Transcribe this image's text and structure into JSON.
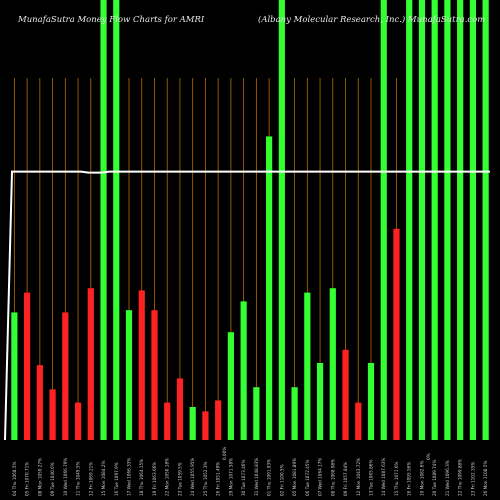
{
  "chart_data": {
    "type": "bar",
    "title_left": "MunafaSutra  Money Flow  Charts for AMRI",
    "title_right": "(Albany Molecular Research, Inc.) MunafaSutra.com",
    "background": "#000000",
    "colors": {
      "up": "#33ff33",
      "down": "#ff2222",
      "line": "#ffffff",
      "grid": "#b86a00"
    },
    "ylim": [
      0,
      100
    ],
    "grid_vertical": true,
    "line_series": {
      "name": "",
      "values": [
        61,
        61,
        61,
        61,
        61,
        61,
        61,
        61,
        61,
        61,
        61,
        61,
        61,
        61,
        61,
        61,
        61,
        61,
        61,
        61,
        61,
        61,
        61,
        61,
        61,
        61,
        61,
        61,
        61,
        61,
        61,
        61,
        61,
        61,
        61,
        61,
        61,
        61,
        61,
        61,
        61,
        61,
        61,
        61,
        61,
        61,
        61,
        61,
        61,
        61,
        61,
        61,
        61,
        61,
        61,
        61,
        61,
        61,
        61,
        61,
        61,
        61,
        61,
        61,
        61,
        61,
        61,
        61,
        61,
        61
      ]
    },
    "bars": [
      {
        "label": "04 Thu 1068.5% ",
        "value": 29,
        "dir": "up"
      },
      {
        "label": "05 Fri 1070.71% ",
        "value": 33.5,
        "dir": "down"
      },
      {
        "label": "08 Mon 1059.27% ",
        "value": 17,
        "dir": "down"
      },
      {
        "label": "09 Tue 1040.6% ",
        "value": 11.5,
        "dir": "down"
      },
      {
        "label": "10 Wed 1066.79% ",
        "value": 29,
        "dir": "down"
      },
      {
        "label": "11 Thu 1049.5% ",
        "value": 8.5,
        "dir": "down"
      },
      {
        "label": "12 Fri 1069.21% ",
        "value": 34.5,
        "dir": "down"
      },
      {
        "label": "15 Mon 1084.2% ",
        "value": 100,
        "dir": "up"
      },
      {
        "label": "16 Tue 1097.9% ",
        "value": 100,
        "dir": "up"
      },
      {
        "label": "17 Wed 1066.33% ",
        "value": 29.5,
        "dir": "up"
      },
      {
        "label": "18 Thu 1064.15% ",
        "value": 34,
        "dir": "down"
      },
      {
        "label": "19 Fri 1063.66% ",
        "value": 29.5,
        "dir": "down"
      },
      {
        "label": "22 Mon 1050.18% ",
        "value": 8.5,
        "dir": "down"
      },
      {
        "label": "23 Tue 1059.5% ",
        "value": 14,
        "dir": "down"
      },
      {
        "label": "24 Wed 1055.95% ",
        "value": 7.5,
        "dir": "up"
      },
      {
        "label": "25 Thu 1052.3% ",
        "value": 6.5,
        "dir": "down"
      },
      {
        "label": "26 Fri 1051.49% ",
        "value": 9,
        "dir": "down"
      },
      {
        "label": "29 Mon 1071.58% ",
        "value": 24.5,
        "dir": "up"
      },
      {
        "label": "30 Tue 1073.46% ",
        "value": 31.5,
        "dir": "up"
      },
      {
        "label": "31 Wed 1048.83% ",
        "value": 12,
        "dir": "up"
      },
      {
        "label": "01 Thu 1091.93% ",
        "value": 69,
        "dir": "up"
      },
      {
        "label": "02 Fri 1100.5% ",
        "value": 100,
        "dir": "up"
      },
      {
        "label": "05 Mon 1081.89% ",
        "value": 12,
        "dir": "up"
      },
      {
        "label": "06 Tue 1072.45% ",
        "value": 33.5,
        "dir": "up"
      },
      {
        "label": "07 Wed 1064.17% ",
        "value": 17.5,
        "dir": "up"
      },
      {
        "label": "08 Thu 1068.98% ",
        "value": 34.5,
        "dir": "up"
      },
      {
        "label": "09 Fri 1057.84% ",
        "value": 20.5,
        "dir": "down"
      },
      {
        "label": "12 Mon 1043.72% ",
        "value": 8.5,
        "dir": "down"
      },
      {
        "label": "13 Tue 1065.86% ",
        "value": 17.5,
        "dir": "up"
      },
      {
        "label": "14 Wed 1087.63% ",
        "value": 100,
        "dir": "up"
      },
      {
        "label": "15 Thu 1071.6% ",
        "value": 48,
        "dir": "down"
      },
      {
        "label": "16 Fri 1095.56% ",
        "value": 100,
        "dir": "up"
      },
      {
        "label": "19 Mon 1082.6% ",
        "value": 100,
        "dir": "up"
      },
      {
        "label": "20 Tue 1089.74% ",
        "value": 100,
        "dir": "up"
      },
      {
        "label": "21 Wed 1096.3% ",
        "value": 100,
        "dir": "up"
      },
      {
        "label": "22 Thu 1099.88% ",
        "value": 100,
        "dir": "up"
      },
      {
        "label": "23 Fri 1102.35% ",
        "value": 100,
        "dir": "up"
      },
      {
        "label": "26 Mon 1108.5% ",
        "value": 100,
        "dir": "up"
      }
    ],
    "mid_labels": [
      {
        "after_index": 16,
        "text": "0.00% "
      },
      {
        "after_index": 32,
        "text": "0% "
      }
    ]
  }
}
